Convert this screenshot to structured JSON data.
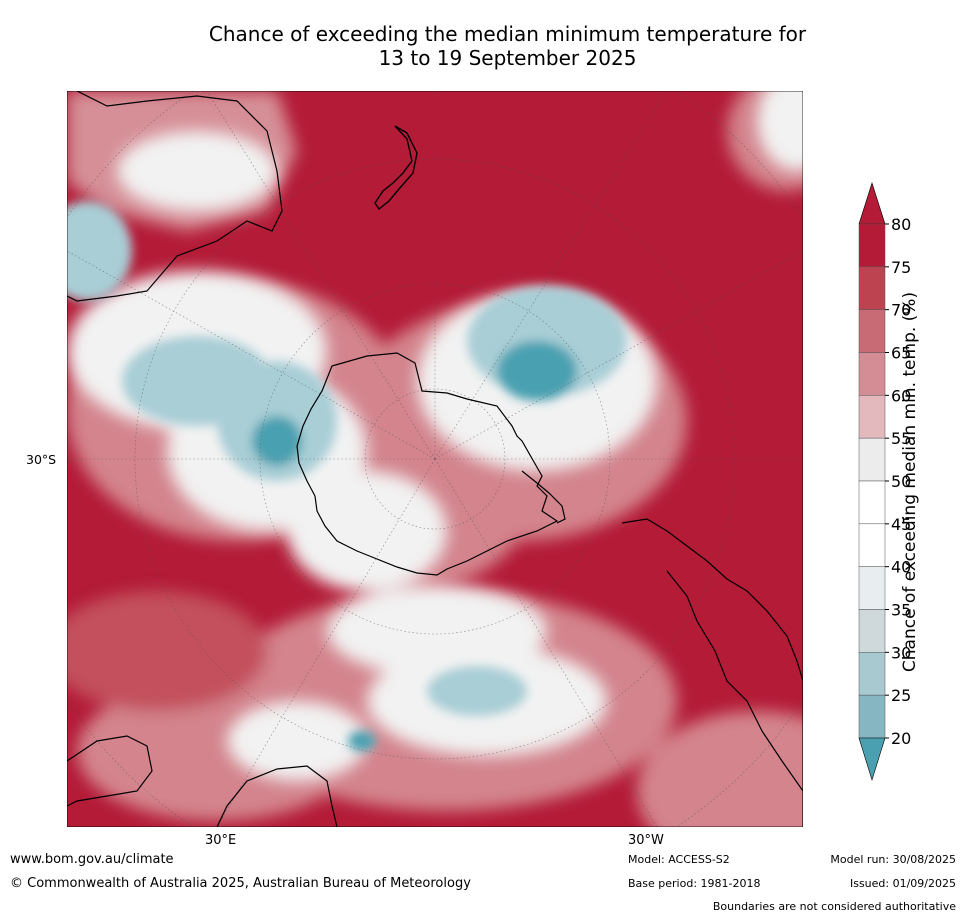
{
  "title_line1": "Chance of exceeding the median minimum temperature for",
  "title_line2": "13 to 19 September 2025",
  "map": {
    "lat_label": "30°S",
    "lon_labels": [
      "30°E",
      "30°W"
    ],
    "colors": {
      "very_high": "#b31b37",
      "high": "#c4525f",
      "mid_high": "#d58a92",
      "low_high": "#e6b8bd",
      "neutral": "#f2f2f2",
      "cool_low": "#dde6e9",
      "cool": "#a9ced6",
      "cold": "#4aa0b1",
      "land_edge": "#000000"
    }
  },
  "colorbar": {
    "label": "Chance of exceeding median min. temp. (%)",
    "ticks": [
      "80",
      "75",
      "70",
      "65",
      "60",
      "55",
      "50",
      "45",
      "40",
      "35",
      "30",
      "25",
      "20"
    ],
    "bands": [
      "#b31b37",
      "#bc434f",
      "#c86b74",
      "#d48d95",
      "#e3b9be",
      "#ececec",
      "#ffffff",
      "#ffffff",
      "#e8eef0",
      "#cfd9dc",
      "#a8c9cf",
      "#86b6c1",
      "#69a9b6",
      "#55a0b0"
    ],
    "top_color": "#b31b37",
    "bottom_color": "#4aa0b1"
  },
  "footer": {
    "url": "www.bom.gov.au/climate",
    "copyright": "© Commonwealth of Australia 2025, Australian Bureau of Meteorology",
    "model": "Model: ACCESS-S2",
    "base_period": "Base period: 1981-2018",
    "model_run": "Model run: 30/08/2025",
    "issued": "Issued: 01/09/2025",
    "disclaimer": "Boundaries are not considered authoritative"
  }
}
